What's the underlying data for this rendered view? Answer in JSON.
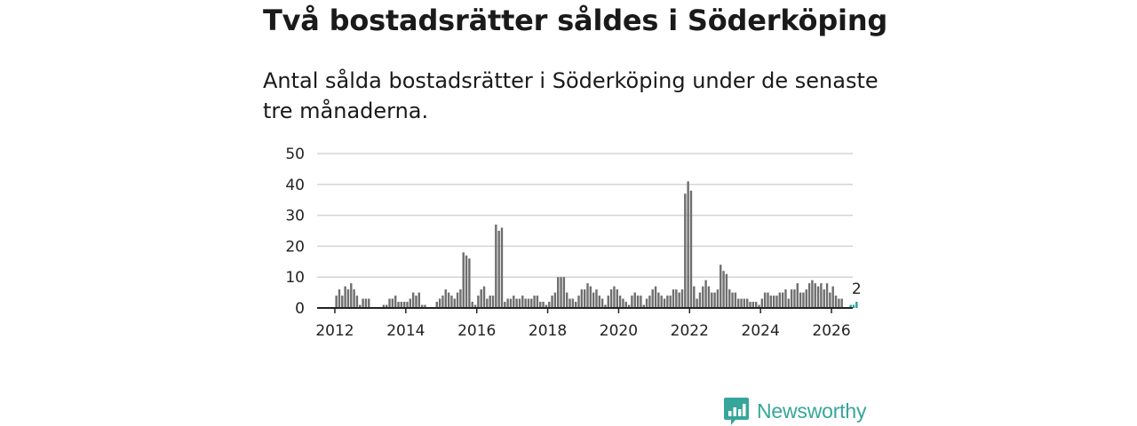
{
  "title": "Två bostadsrätter såldes i Söderköping",
  "subtitle": "Antal sålda bostadsrätter i Söderköping under de senaste tre månaderna.",
  "brand": {
    "name": "Newsworthy",
    "logo_icon": "newsworthy-logo-icon"
  },
  "colors": {
    "bar": "#6e6e6e",
    "highlight": "#2aa198",
    "grid": "#d4d4d4",
    "axis": "#222222",
    "brand": "#36a69a"
  },
  "chart_data": {
    "type": "bar",
    "title": "Antal sålda bostadsrätter",
    "xlabel": "",
    "ylabel": "",
    "ylim": [
      0,
      50
    ],
    "yticks": [
      0,
      10,
      20,
      30,
      40,
      50
    ],
    "xlim": [
      2011.5,
      2026.6
    ],
    "xticks": [
      2012,
      2014,
      2016,
      2018,
      2020,
      2022,
      2024,
      2026
    ],
    "grid": true,
    "start": [
      2012,
      1
    ],
    "values": [
      4,
      6,
      4,
      7,
      6,
      8,
      6,
      4,
      1,
      3,
      3,
      3,
      0,
      0,
      0,
      0,
      1,
      1,
      3,
      3,
      4,
      2,
      2,
      2,
      2,
      3,
      5,
      4,
      5,
      1,
      1,
      0,
      0,
      0,
      2,
      3,
      4,
      6,
      5,
      4,
      3,
      5,
      6,
      18,
      17,
      16,
      2,
      1,
      4,
      6,
      7,
      3,
      4,
      4,
      27,
      25,
      26,
      2,
      3,
      3,
      4,
      3,
      3,
      4,
      3,
      3,
      3,
      4,
      4,
      2,
      2,
      1,
      2,
      4,
      5,
      10,
      10,
      10,
      5,
      3,
      3,
      2,
      4,
      6,
      6,
      8,
      7,
      5,
      6,
      4,
      3,
      1,
      4,
      6,
      7,
      6,
      4,
      3,
      2,
      1,
      4,
      5,
      4,
      4,
      1,
      3,
      4,
      6,
      7,
      5,
      4,
      3,
      4,
      4,
      6,
      6,
      5,
      6,
      37,
      41,
      38,
      7,
      3,
      5,
      7,
      9,
      7,
      5,
      5,
      6,
      14,
      12,
      11,
      6,
      5,
      5,
      3,
      3,
      3,
      3,
      2,
      2,
      2,
      1,
      3,
      5,
      5,
      4,
      4,
      4,
      5,
      5,
      6,
      3,
      6,
      6,
      8,
      5,
      5,
      6,
      8,
      9,
      8,
      7,
      8,
      6,
      8,
      5,
      7,
      4,
      3,
      3,
      0,
      0,
      1,
      1,
      2
    ],
    "highlight_last": 3,
    "last_label": "2"
  }
}
